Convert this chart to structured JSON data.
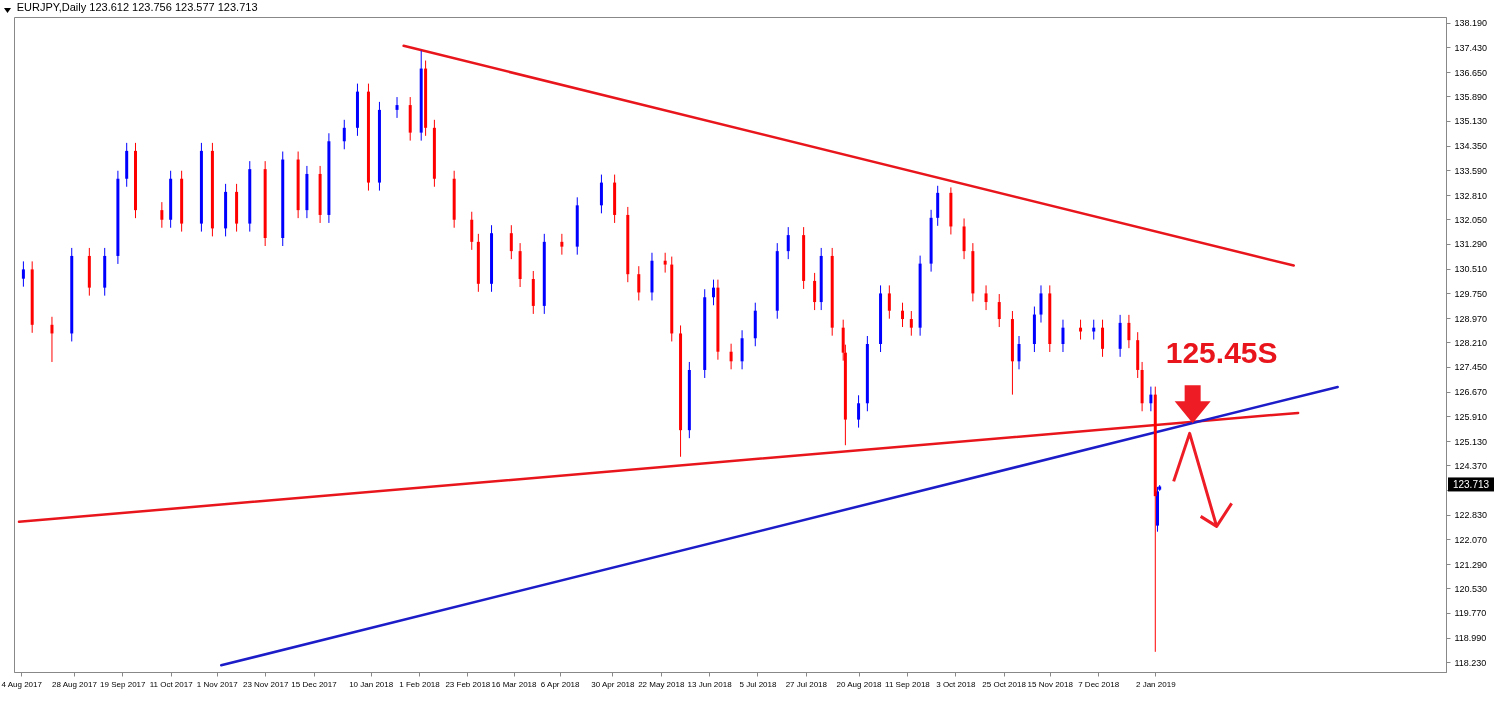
{
  "chart_data": {
    "type": "candlestick",
    "title": "EURJPY,Daily  123.612 123.756 123.577 123.713",
    "xlim": [
      "2017-08-03",
      "2019-05-12"
    ],
    "xticks": [
      {
        "value": "2017-08-04",
        "label": "4 Aug 2017"
      },
      {
        "value": "2017-08-28",
        "label": "28 Aug 2017"
      },
      {
        "value": "2017-09-19",
        "label": "19 Sep 2017"
      },
      {
        "value": "2017-10-11",
        "label": "11 Oct 2017"
      },
      {
        "value": "2017-11-01",
        "label": "1 Nov 2017"
      },
      {
        "value": "2017-11-23",
        "label": "23 Nov 2017"
      },
      {
        "value": "2017-12-15",
        "label": "15 Dec 2017"
      },
      {
        "value": "2018-01-10",
        "label": "10 Jan 2018"
      },
      {
        "value": "2018-02-01",
        "label": "1 Feb 2018"
      },
      {
        "value": "2018-02-23",
        "label": "23 Feb 2018"
      },
      {
        "value": "2018-03-16",
        "label": "16 Mar 2018"
      },
      {
        "value": "2018-04-06",
        "label": "6 Apr 2018"
      },
      {
        "value": "2018-04-30",
        "label": "30 Apr 2018"
      },
      {
        "value": "2018-05-22",
        "label": "22 May 2018"
      },
      {
        "value": "2018-06-13",
        "label": "13 Jun 2018"
      },
      {
        "value": "2018-07-05",
        "label": "5 Jul 2018"
      },
      {
        "value": "2018-07-27",
        "label": "27 Jul 2018"
      },
      {
        "value": "2018-08-20",
        "label": "20 Aug 2018"
      },
      {
        "value": "2018-09-11",
        "label": "11 Sep 2018"
      },
      {
        "value": "2018-10-03",
        "label": "3 Oct 2018"
      },
      {
        "value": "2018-10-25",
        "label": "25 Oct 2018"
      },
      {
        "value": "2018-11-15",
        "label": "15 Nov 2018"
      },
      {
        "value": "2018-12-07",
        "label": "7 Dec 2018"
      },
      {
        "value": "2019-01-02",
        "label": "2 Jan 2019"
      }
    ],
    "ylim": [
      117.92,
      138.37
    ],
    "yticks": [
      {
        "value": 118.23,
        "label": "118.230"
      },
      {
        "value": 118.99,
        "label": "118.990"
      },
      {
        "value": 119.77,
        "label": "119.770"
      },
      {
        "value": 120.53,
        "label": "120.530"
      },
      {
        "value": 121.29,
        "label": "121.290"
      },
      {
        "value": 122.07,
        "label": "122.070"
      },
      {
        "value": 122.83,
        "label": "122.830"
      },
      {
        "value": 123.61,
        "label": null
      },
      {
        "value": 124.37,
        "label": "124.370"
      },
      {
        "value": 125.13,
        "label": "125.130"
      },
      {
        "value": 125.91,
        "label": "125.910"
      },
      {
        "value": 126.67,
        "label": "126.670"
      },
      {
        "value": 127.45,
        "label": "127.450"
      },
      {
        "value": 128.21,
        "label": "128.210"
      },
      {
        "value": 128.97,
        "label": "128.970"
      },
      {
        "value": 129.75,
        "label": "129.750"
      },
      {
        "value": 130.51,
        "label": "130.510"
      },
      {
        "value": 131.29,
        "label": "131.290"
      },
      {
        "value": 132.05,
        "label": "132.050"
      },
      {
        "value": 132.81,
        "label": "132.810"
      },
      {
        "value": 133.59,
        "label": "133.590"
      },
      {
        "value": 134.35,
        "label": "134.350"
      },
      {
        "value": 135.13,
        "label": "135.130"
      },
      {
        "value": 135.89,
        "label": "135.890"
      },
      {
        "value": 136.65,
        "label": "136.650"
      },
      {
        "value": 137.43,
        "label": "137.430"
      },
      {
        "value": 138.19,
        "label": "138.190"
      }
    ],
    "grid": false,
    "series": [
      {
        "type": "line",
        "color": "#e8161c",
        "x": [
          "2018-01-25",
          "2019-03-06"
        ],
        "values": [
          137.47,
          130.61
        ]
      },
      {
        "type": "line",
        "color": "#e8161c",
        "x": [
          "2017-08-03",
          "2019-03-08"
        ],
        "values": [
          122.61,
          126.01
        ]
      },
      {
        "type": "line",
        "color": "#1c1cc8",
        "x": [
          "2017-11-03",
          "2019-03-26"
        ],
        "values": [
          118.13,
          126.82
        ]
      },
      {
        "color": "#0000ff",
        "x": [
          "2017-08-05",
          "2017-08-27",
          "2017-09-11",
          "2017-09-17",
          "2017-09-21",
          "2017-10-11",
          "2017-10-25",
          "2017-11-05",
          "2017-11-16",
          "2017-12-01",
          "2017-12-12",
          "2017-12-22",
          "2017-12-29",
          "2018-01-04",
          "2018-01-14",
          "2018-01-22",
          "2018-02-02",
          "2018-03-06",
          "2018-03-30",
          "2018-04-14",
          "2018-04-25",
          "2018-05-18",
          "2018-06-04",
          "2018-06-11",
          "2018-06-15",
          "2018-06-28",
          "2018-07-04",
          "2018-07-14",
          "2018-07-19",
          "2018-08-03",
          "2018-08-20",
          "2018-08-24",
          "2018-08-30",
          "2018-09-17",
          "2018-09-22",
          "2018-09-25",
          "2018-11-01",
          "2018-11-08",
          "2018-11-11",
          "2018-11-21",
          "2018-12-05",
          "2018-12-17",
          "2018-12-31",
          "2019-01-03",
          "2019-01-04"
        ],
        "ohlc": [
          [
            130.2,
            130.74,
            129.95,
            130.49
          ],
          [
            128.49,
            131.16,
            128.24,
            130.91
          ],
          [
            129.92,
            131.16,
            129.67,
            130.91
          ],
          [
            130.91,
            133.57,
            130.66,
            133.32
          ],
          [
            133.32,
            134.44,
            133.07,
            134.19
          ],
          [
            132.04,
            133.57,
            131.79,
            133.32
          ],
          [
            131.92,
            134.44,
            131.67,
            134.19
          ],
          [
            131.77,
            133.16,
            131.52,
            132.91
          ],
          [
            131.92,
            133.87,
            131.67,
            133.62
          ],
          [
            131.47,
            134.17,
            131.22,
            133.92
          ],
          [
            132.34,
            133.72,
            132.09,
            133.47
          ],
          [
            132.19,
            134.74,
            131.94,
            134.49
          ],
          [
            134.49,
            135.16,
            134.24,
            134.91
          ],
          [
            134.91,
            136.29,
            134.66,
            136.04
          ],
          [
            133.2,
            135.72,
            132.95,
            135.47
          ],
          [
            135.47,
            135.87,
            135.22,
            135.62
          ],
          [
            134.76,
            137.32,
            134.51,
            136.76
          ],
          [
            130.04,
            131.87,
            129.79,
            131.62
          ],
          [
            129.35,
            131.6,
            129.1,
            131.35
          ],
          [
            131.2,
            132.74,
            130.95,
            132.49
          ],
          [
            132.49,
            133.45,
            132.24,
            133.2
          ],
          [
            129.77,
            131.01,
            129.52,
            130.76
          ],
          [
            125.47,
            127.6,
            125.22,
            127.35
          ],
          [
            127.35,
            129.87,
            127.1,
            129.62
          ],
          [
            129.62,
            130.17,
            129.37,
            129.92
          ],
          [
            127.62,
            128.59,
            127.37,
            128.34
          ],
          [
            128.34,
            129.45,
            128.09,
            129.2
          ],
          [
            129.2,
            131.31,
            128.95,
            131.06
          ],
          [
            131.06,
            131.81,
            130.81,
            131.56
          ],
          [
            129.47,
            131.16,
            129.22,
            130.91
          ],
          [
            125.8,
            126.56,
            125.55,
            126.31
          ],
          [
            126.31,
            128.41,
            126.06,
            128.16
          ],
          [
            128.16,
            129.99,
            127.91,
            129.74
          ],
          [
            128.67,
            130.92,
            128.42,
            130.67
          ],
          [
            130.67,
            132.35,
            130.42,
            132.1
          ],
          [
            132.1,
            133.1,
            131.85,
            132.88
          ],
          [
            127.62,
            128.41,
            127.37,
            128.16
          ],
          [
            128.16,
            129.33,
            127.91,
            129.08
          ],
          [
            129.08,
            129.99,
            128.83,
            129.74
          ],
          [
            128.16,
            128.92,
            127.91,
            128.67
          ],
          [
            128.55,
            128.92,
            128.3,
            128.67
          ],
          [
            128.01,
            129.07,
            127.76,
            128.82
          ],
          [
            126.31,
            126.83,
            126.06,
            126.58
          ],
          [
            122.49,
            123.7,
            122.3,
            123.56
          ],
          [
            123.612,
            123.756,
            123.577,
            123.713
          ]
        ]
      },
      {
        "color": "#ff0000",
        "x": [
          "2017-08-09",
          "2017-08-18",
          "2017-09-04",
          "2017-09-25",
          "2017-10-07",
          "2017-10-16",
          "2017-10-30",
          "2017-11-10",
          "2017-11-23",
          "2017-12-08",
          "2017-12-18",
          "2018-01-09",
          "2018-01-28",
          "2018-02-04",
          "2018-02-08",
          "2018-02-17",
          "2018-02-25",
          "2018-02-28",
          "2018-03-15",
          "2018-03-19",
          "2018-03-25",
          "2018-04-07",
          "2018-05-01",
          "2018-05-07",
          "2018-05-12",
          "2018-05-24",
          "2018-05-27",
          "2018-05-31",
          "2018-06-17",
          "2018-06-23",
          "2018-07-26",
          "2018-07-31",
          "2018-08-08",
          "2018-08-13",
          "2018-08-14",
          "2018-09-03",
          "2018-09-09",
          "2018-09-13",
          "2018-10-01",
          "2018-10-07",
          "2018-10-11",
          "2018-10-17",
          "2018-10-23",
          "2018-10-29",
          "2018-11-15",
          "2018-11-29",
          "2018-12-09",
          "2018-12-21",
          "2018-12-25",
          "2018-12-27",
          "2019-01-02"
        ],
        "ohlc": [
          [
            130.49,
            130.74,
            128.51,
            128.76
          ],
          [
            128.76,
            129.01,
            127.6,
            128.49
          ],
          [
            130.91,
            131.16,
            129.67,
            129.92
          ],
          [
            134.19,
            134.44,
            132.09,
            132.34
          ],
          [
            132.34,
            132.59,
            131.79,
            132.04
          ],
          [
            133.32,
            133.57,
            131.67,
            131.92
          ],
          [
            134.19,
            134.44,
            131.52,
            131.77
          ],
          [
            132.91,
            133.16,
            131.67,
            131.92
          ],
          [
            133.62,
            133.87,
            131.22,
            131.47
          ],
          [
            133.92,
            134.17,
            132.09,
            132.34
          ],
          [
            133.47,
            133.72,
            131.94,
            132.19
          ],
          [
            136.04,
            136.29,
            132.95,
            133.2
          ],
          [
            135.62,
            135.87,
            134.51,
            134.76
          ],
          [
            136.76,
            137.01,
            134.66,
            134.91
          ],
          [
            134.91,
            135.16,
            133.07,
            133.32
          ],
          [
            133.32,
            133.57,
            131.79,
            132.04
          ],
          [
            132.04,
            132.29,
            131.1,
            131.35
          ],
          [
            131.35,
            131.6,
            129.79,
            130.04
          ],
          [
            131.62,
            131.87,
            130.81,
            131.06
          ],
          [
            131.06,
            131.31,
            129.94,
            130.19
          ],
          [
            130.19,
            130.44,
            129.1,
            129.35
          ],
          [
            131.35,
            131.6,
            130.95,
            131.2
          ],
          [
            133.2,
            133.45,
            131.94,
            132.19
          ],
          [
            132.19,
            132.44,
            130.09,
            130.34
          ],
          [
            130.34,
            130.59,
            129.52,
            129.77
          ],
          [
            130.76,
            131.01,
            130.39,
            130.64
          ],
          [
            130.64,
            130.89,
            128.24,
            128.49
          ],
          [
            128.49,
            128.74,
            124.64,
            125.47
          ],
          [
            129.92,
            130.17,
            127.67,
            127.92
          ],
          [
            127.92,
            128.17,
            127.37,
            127.62
          ],
          [
            131.56,
            131.81,
            129.88,
            130.13
          ],
          [
            130.13,
            130.38,
            129.22,
            129.47
          ],
          [
            130.91,
            131.16,
            128.42,
            128.67
          ],
          [
            128.67,
            128.92,
            127.64,
            127.89
          ],
          [
            127.89,
            128.14,
            125.0,
            125.8
          ],
          [
            129.74,
            129.99,
            128.95,
            129.2
          ],
          [
            129.2,
            129.45,
            128.69,
            128.94
          ],
          [
            128.94,
            129.19,
            128.42,
            128.67
          ],
          [
            132.88,
            133.05,
            131.58,
            131.83
          ],
          [
            131.83,
            132.08,
            130.81,
            131.06
          ],
          [
            131.06,
            131.31,
            129.49,
            129.74
          ],
          [
            129.74,
            129.99,
            129.22,
            129.47
          ],
          [
            129.47,
            129.72,
            128.69,
            128.94
          ],
          [
            128.94,
            129.19,
            126.58,
            127.62
          ],
          [
            129.74,
            129.99,
            127.91,
            128.16
          ],
          [
            128.67,
            128.92,
            128.3,
            128.55
          ],
          [
            128.67,
            128.92,
            127.76,
            128.01
          ],
          [
            128.82,
            129.07,
            128.03,
            128.28
          ],
          [
            128.28,
            128.53,
            127.1,
            127.35
          ],
          [
            127.35,
            127.6,
            126.06,
            126.31
          ],
          [
            126.58,
            126.83,
            118.55,
            123.41
          ]
        ]
      }
    ],
    "annotations": [
      "125.45S",
      "123.713"
    ]
  }
}
